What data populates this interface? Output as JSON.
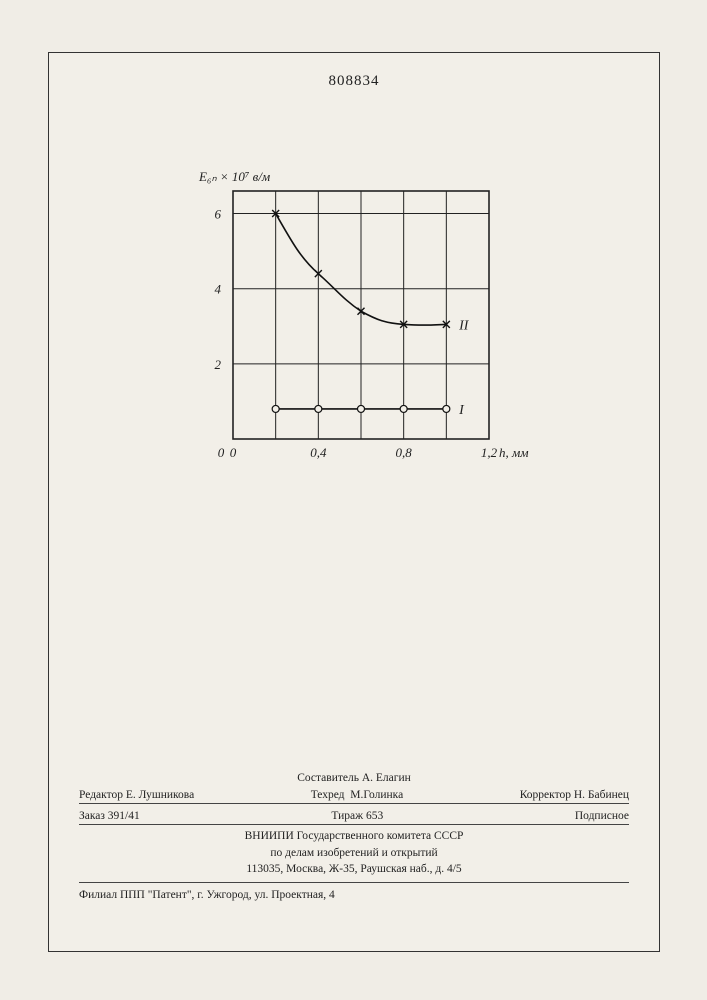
{
  "document_number": "808834",
  "chart": {
    "type": "line",
    "background_color": "#f2efe8",
    "axis_color": "#222222",
    "grid_color": "#222222",
    "line_color": "#111111",
    "line_width": 1.6,
    "marker_stroke": "#111111",
    "marker_fill": "#f2efe8",
    "y_axis_label": "E₆ₙ × 10⁷ в/м",
    "x_axis_label": "h, мм",
    "label_fontsize": 13,
    "tick_fontsize": 13,
    "xlim": [
      0,
      1.2
    ],
    "ylim": [
      0,
      6.6
    ],
    "xticks": [
      0,
      0.4,
      0.8,
      1.2
    ],
    "xtick_labels": [
      "0",
      "0,4",
      "0,8",
      "1,2"
    ],
    "yticks": [
      0,
      2,
      4,
      6
    ],
    "ytick_labels": [
      "0",
      "2",
      "4",
      "6"
    ],
    "x_gridlines": [
      0.2,
      0.4,
      0.6,
      0.8,
      1.0
    ],
    "y_gridlines": [
      2,
      4,
      6
    ],
    "series": [
      {
        "name": "II",
        "label": "II",
        "marker": "x",
        "marker_size": 7,
        "points": [
          {
            "x": 0.2,
            "y": 6.0
          },
          {
            "x": 0.4,
            "y": 4.4
          },
          {
            "x": 0.6,
            "y": 3.4
          },
          {
            "x": 0.8,
            "y": 3.05
          },
          {
            "x": 1.0,
            "y": 3.05
          }
        ],
        "label_pos": {
          "x": 1.06,
          "y": 3.05
        }
      },
      {
        "name": "I",
        "label": "I",
        "marker": "o",
        "marker_size": 3.5,
        "points": [
          {
            "x": 0.2,
            "y": 0.8
          },
          {
            "x": 0.4,
            "y": 0.8
          },
          {
            "x": 0.6,
            "y": 0.8
          },
          {
            "x": 0.8,
            "y": 0.8
          },
          {
            "x": 1.0,
            "y": 0.8
          }
        ],
        "label_pos": {
          "x": 1.06,
          "y": 0.8
        }
      }
    ]
  },
  "footer": {
    "row1": {
      "editor_label": "Редактор",
      "editor_name": "Е. Лушникова",
      "compiler_label": "Составитель",
      "compiler_name": "А. Елагин",
      "tehred_label": "Техред",
      "tehred_name": "М.Голинка",
      "corrector_label": "Корректор",
      "corrector_name": "Н. Бабинец"
    },
    "row2": {
      "order": "Заказ 391/41",
      "tirazh": "Тираж 653",
      "podpisnoe": "Подписное"
    },
    "center": {
      "line1": "ВНИИПИ Государственного комитета СССР",
      "line2": "по делам изобретений и открытий",
      "line3": "113035, Москва, Ж-35, Раушская наб., д. 4/5"
    },
    "last": "Филиал ППП \"Патент\", г. Ужгород, ул. Проектная, 4"
  }
}
